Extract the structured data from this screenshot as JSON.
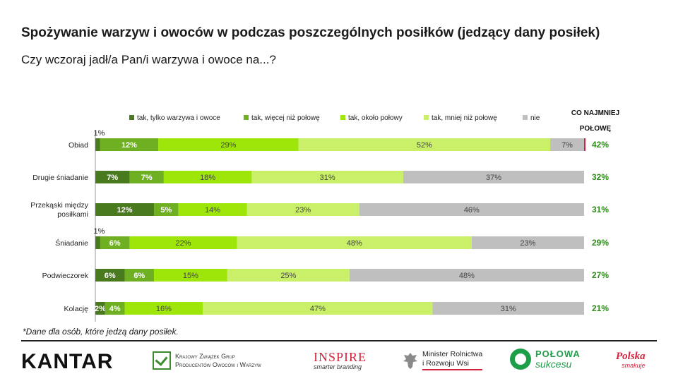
{
  "header": {
    "title": "Spożywanie warzyw i owoców w podczas poszczególnych posiłków (jedzący dany posiłek)",
    "subtitle": "Czy wczoraj jadł/a Pan/i warzywa i owoce na...?"
  },
  "footnote": "*Dane dla osób, które jedzą dany posiłek.",
  "chart_data": {
    "type": "bar",
    "orientation": "horizontal-stacked-100",
    "categories": [
      "Obiad",
      "Drugie śniadanie",
      "Przekąski między posiłkami",
      "Śniadanie",
      "Podwieczorek",
      "Kolację"
    ],
    "series": [
      {
        "name": "tak, tylko warzywa i owoce",
        "color": "#4a7a1e",
        "values": [
          1,
          7,
          12,
          1,
          6,
          2
        ]
      },
      {
        "name": "tak, więcej niż połowę",
        "color": "#6fb023",
        "values": [
          12,
          7,
          5,
          6,
          6,
          4
        ]
      },
      {
        "name": "tak, około połowy",
        "color": "#9ee60a",
        "values": [
          29,
          18,
          14,
          22,
          15,
          16
        ]
      },
      {
        "name": "tak, mniej niż połowę",
        "color": "#caf06a",
        "values": [
          52,
          31,
          23,
          48,
          25,
          47
        ]
      },
      {
        "name": "nie",
        "color": "#bfbfbf",
        "values": [
          7,
          37,
          46,
          23,
          48,
          31
        ]
      }
    ],
    "summary_header": "CO NAJMNIEJ POŁOWĘ",
    "summary_values": [
      "42%",
      "32%",
      "31%",
      "29%",
      "27%",
      "21%"
    ],
    "summary_color": "#2e8b1a",
    "legend_position": "top",
    "xlim": [
      0,
      100
    ]
  },
  "logos": {
    "kantar": "KANTAR",
    "krzg": [
      "Krajowy Związek Grup",
      "Producentów Owoców i Warzyw"
    ],
    "inspire": [
      "INSPIRE",
      "smarter branding"
    ],
    "minister": [
      "Minister Rolnictwa",
      "i Rozwoju Wsi"
    ],
    "polowa": [
      "POŁOWA",
      "sukcesu"
    ],
    "polska": [
      "Polska",
      "smakuje"
    ]
  }
}
